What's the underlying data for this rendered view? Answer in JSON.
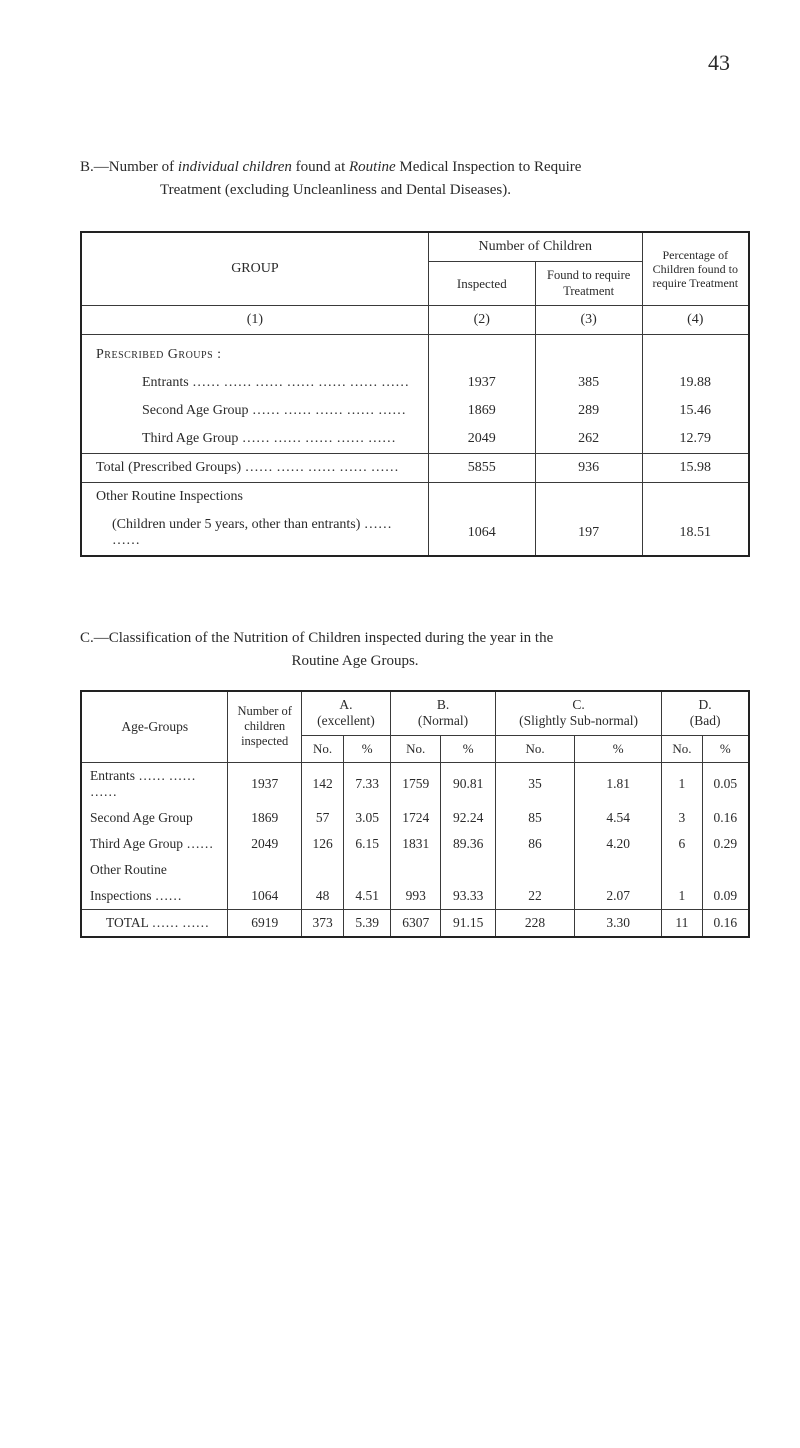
{
  "page_number": "43",
  "sectionB": {
    "intro_line1_prefix": "B.—Number of ",
    "intro_line1_italic1": "individual children",
    "intro_line1_mid": " found at ",
    "intro_line1_italic2": "Routine",
    "intro_line1_suffix": " Medical Inspection to Require",
    "intro_line2": "Treatment (excluding Uncleanliness and Dental Diseases).",
    "table": {
      "header_group": "GROUP",
      "header_num_children": "Number of Children",
      "header_inspected": "Inspected",
      "header_found": "Found to require Treatment",
      "header_percent": "Percentage of Children found to require Treatment",
      "col_ids": [
        "(1)",
        "(2)",
        "(3)",
        "(4)"
      ],
      "prescribed_label": "Prescribed Groups :",
      "rows_prescribed": [
        {
          "label": "Entrants ……   ……   ……   ……   ……   ……   ……",
          "c2": "1937",
          "c3": "385",
          "c4": "19.88"
        },
        {
          "label": "Second Age Group   ……   ……   ……   ……   ……",
          "c2": "1869",
          "c3": "289",
          "c4": "15.46"
        },
        {
          "label": "Third Age Group     ……   ……   ……   ……   ……",
          "c2": "2049",
          "c3": "262",
          "c4": "12.79"
        }
      ],
      "total_row": {
        "label": "Total (Prescribed Groups)     ……   ……   ……   ……   ……",
        "c2": "5855",
        "c3": "936",
        "c4": "15.98"
      },
      "other_label": "Other Routine Inspections",
      "other_row": {
        "label": "(Children under 5 years, other than entrants)   ……   ……",
        "c2": "1064",
        "c3": "197",
        "c4": "18.51"
      }
    }
  },
  "sectionC": {
    "intro_line1": "C.—Classification of the Nutrition of Children inspected during the year in the",
    "intro_line2": "Routine Age Groups.",
    "table": {
      "header_age": "Age-Groups",
      "header_numchildren": "Number of children inspected",
      "groups": [
        {
          "letter": "A.",
          "label": "(excellent)"
        },
        {
          "letter": "B.",
          "label": "(Normal)"
        },
        {
          "letter": "C.",
          "label": "(Slightly Sub-normal)"
        },
        {
          "letter": "D.",
          "label": "(Bad)"
        }
      ],
      "sub_no": "No.",
      "sub_pct": "%",
      "rows": [
        {
          "label": "Entrants ……   ……   ……",
          "n": "1937",
          "a_no": "142",
          "a_pct": "7.33",
          "b_no": "1759",
          "b_pct": "90.81",
          "c_no": "35",
          "c_pct": "1.81",
          "d_no": "1",
          "d_pct": "0.05"
        },
        {
          "label": "Second Age Group",
          "n": "1869",
          "a_no": "57",
          "a_pct": "3.05",
          "b_no": "1724",
          "b_pct": "92.24",
          "c_no": "85",
          "c_pct": "4.54",
          "d_no": "3",
          "d_pct": "0.16"
        },
        {
          "label": "Third Age Group ……",
          "n": "2049",
          "a_no": "126",
          "a_pct": "6.15",
          "b_no": "1831",
          "b_pct": "89.36",
          "c_no": "86",
          "c_pct": "4.20",
          "d_no": "6",
          "d_pct": "0.29"
        },
        {
          "label": "Other Routine",
          "n": "",
          "a_no": "",
          "a_pct": "",
          "b_no": "",
          "b_pct": "",
          "c_no": "",
          "c_pct": "",
          "d_no": "",
          "d_pct": ""
        },
        {
          "label": "  Inspections   ……",
          "n": "1064",
          "a_no": "48",
          "a_pct": "4.51",
          "b_no": "993",
          "b_pct": "93.33",
          "c_no": "22",
          "c_pct": "2.07",
          "d_no": "1",
          "d_pct": "0.09"
        }
      ],
      "total": {
        "label": "TOTAL   ……  ……",
        "n": "6919",
        "a_no": "373",
        "a_pct": "5.39",
        "b_no": "6307",
        "b_pct": "91.15",
        "c_no": "228",
        "c_pct": "3.30",
        "d_no": "11",
        "d_pct": "0.16"
      }
    }
  }
}
